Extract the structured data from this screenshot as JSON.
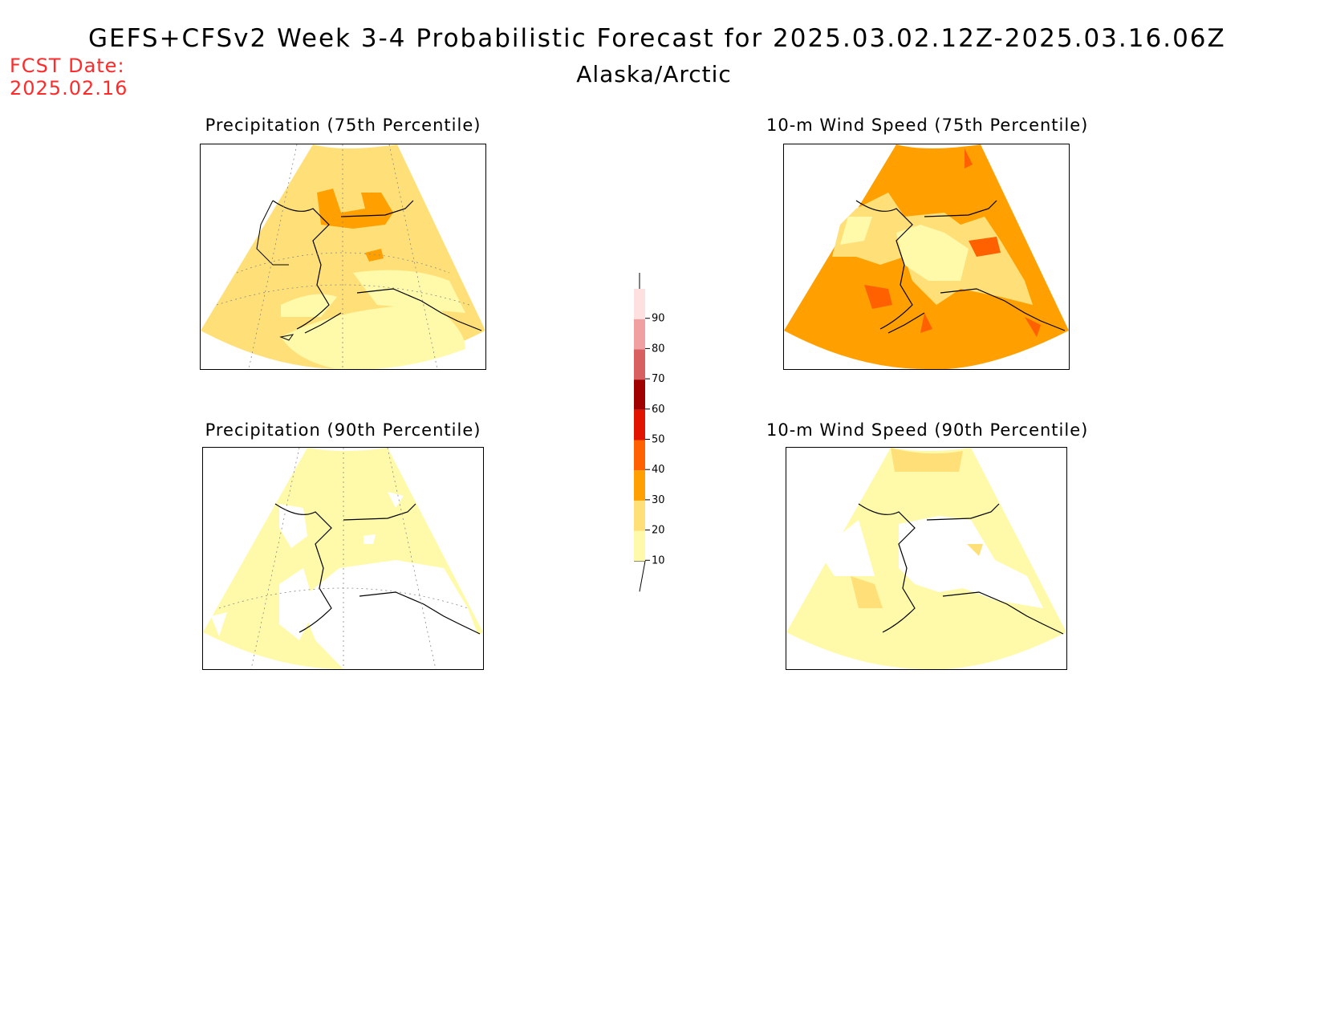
{
  "header": {
    "title": "GEFS+CFSv2 Week 3-4 Probabilistic Forecast for 2025.03.02.12Z-2025.03.16.06Z",
    "subtitle": "Alaska/Arctic",
    "fcst_label": "FCST Date:",
    "fcst_date": "2025.02.16"
  },
  "panels": [
    {
      "title": "Precipitation (75th Percentile)",
      "dominant_category": "20-30"
    },
    {
      "title": "10-m Wind Speed (75th Percentile)",
      "dominant_category": "30-40"
    },
    {
      "title": "Precipitation (90th Percentile)",
      "dominant_category": "10-20"
    },
    {
      "title": "10-m Wind Speed (90th Percentile)",
      "dominant_category": "10-20"
    }
  ],
  "colorbar": {
    "ticks": [
      "10",
      "20",
      "30",
      "40",
      "50",
      "60",
      "70",
      "80",
      "90"
    ],
    "colors": [
      "#fffaaa",
      "#ffe078",
      "#ffa000",
      "#ff6000",
      "#e01400",
      "#a00000",
      "#d86060",
      "#f0a0a0",
      "#fde0e0"
    ]
  }
}
